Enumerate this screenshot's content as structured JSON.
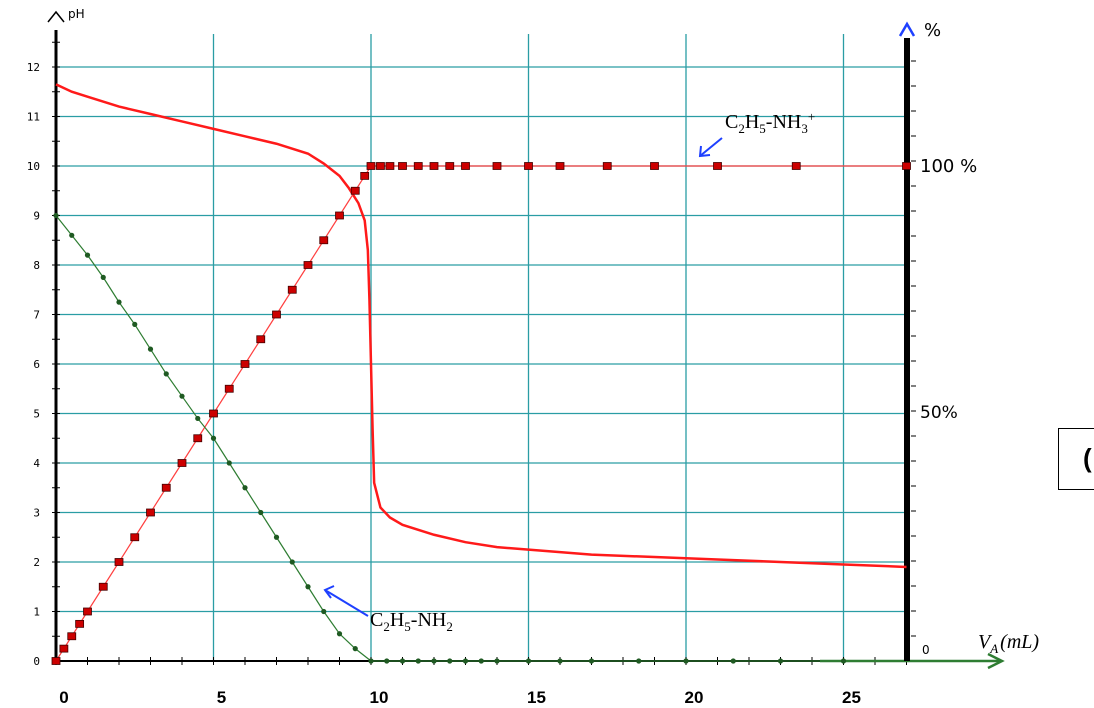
{
  "chart_data": {
    "type": "line",
    "title": "",
    "left_axis_label": "pH",
    "right_axis_label": "%",
    "x_axis_label_parts": {
      "main": "V",
      "sub": "A",
      "unit": "(mL)"
    },
    "y_ticks": [
      "0",
      "1",
      "2",
      "3",
      "4",
      "5",
      "6",
      "7",
      "8",
      "9",
      "10",
      "11",
      "12"
    ],
    "x_ticks": [
      "0",
      "5",
      "10",
      "15",
      "20",
      "25"
    ],
    "right_ticks": [
      "0",
      "50%",
      "100 %"
    ],
    "xlim": [
      0,
      27
    ],
    "ylim": [
      0,
      12.5
    ],
    "grid": true,
    "annotations": {
      "acid_form": {
        "main": "C",
        "s1": "2",
        "mid": "H",
        "s2": "5",
        "rest": "-NH",
        "s3": "3",
        "sup": "+"
      },
      "base_form": {
        "main": "C",
        "s1": "2",
        "mid": "H",
        "s2": "5",
        "rest": "-NH",
        "s3": "2"
      }
    },
    "series": [
      {
        "name": "pH",
        "color": "#ff1a1a",
        "x": [
          0,
          0.5,
          1,
          2,
          3,
          4,
          5,
          6,
          7,
          8,
          8.5,
          9,
          9.3,
          9.6,
          9.8,
          9.9,
          9.95,
          10,
          10.05,
          10.1,
          10.3,
          10.6,
          11,
          12,
          13,
          14,
          15,
          17,
          19,
          21,
          23,
          25,
          27
        ],
        "y": [
          11.65,
          11.5,
          11.4,
          11.2,
          11.05,
          10.9,
          10.75,
          10.6,
          10.45,
          10.25,
          10.05,
          9.8,
          9.55,
          9.25,
          8.9,
          8.3,
          7.3,
          6.0,
          4.7,
          3.6,
          3.1,
          2.9,
          2.75,
          2.55,
          2.4,
          2.3,
          2.25,
          2.15,
          2.1,
          2.05,
          2.0,
          1.95,
          1.9
        ]
      },
      {
        "name": "C2H5-NH3+",
        "color": "#cc0000",
        "marker": "square",
        "x": [
          0,
          0.25,
          0.5,
          0.75,
          1,
          1.5,
          2,
          2.5,
          3,
          3.5,
          4,
          4.5,
          5,
          5.5,
          6,
          6.5,
          7,
          7.5,
          8,
          8.5,
          9,
          9.5,
          9.8,
          10,
          10.3,
          10.6,
          11,
          11.5,
          12,
          12.5,
          13,
          14,
          15,
          16,
          17.5,
          19,
          21,
          23.5,
          27
        ],
        "y": [
          0,
          2.5,
          5,
          7.5,
          10,
          15,
          20,
          25,
          30,
          35,
          40,
          45,
          50,
          55,
          60,
          65,
          70,
          75,
          80,
          85,
          90,
          95,
          98,
          100,
          100,
          100,
          100,
          100,
          100,
          100,
          100,
          100,
          100,
          100,
          100,
          100,
          100,
          100,
          100
        ]
      },
      {
        "name": "C2H5-NH2",
        "color": "#2e7d32",
        "marker": "dot",
        "x": [
          0,
          0.5,
          1,
          1.5,
          2,
          2.5,
          3,
          3.5,
          4,
          4.5,
          5,
          5.5,
          6,
          6.5,
          7,
          7.5,
          8,
          8.5,
          9,
          9.5,
          10,
          10.5,
          11,
          11.5,
          12,
          12.5,
          13,
          13.5,
          14,
          15,
          16,
          17,
          18.5,
          20,
          21.5,
          23,
          25
        ],
        "y": [
          90,
          86,
          82,
          77.5,
          72.5,
          68,
          63,
          58,
          53.5,
          49,
          45,
          40,
          35,
          30,
          25,
          20,
          15,
          10,
          5.5,
          2.5,
          0,
          0,
          0,
          0,
          0,
          0,
          0,
          0,
          0,
          0,
          0,
          0,
          0,
          0,
          0,
          0,
          0
        ]
      }
    ]
  },
  "side_box": {
    "label": "("
  }
}
